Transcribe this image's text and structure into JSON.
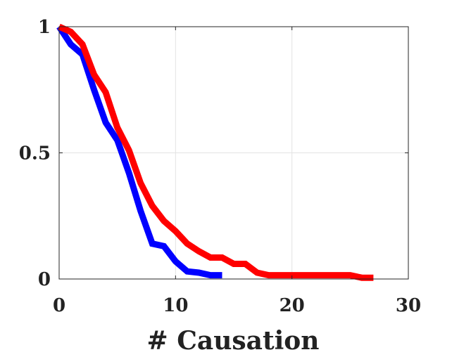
{
  "chart_data": {
    "type": "line",
    "title": "",
    "xlabel": "# Causation",
    "ylabel": "",
    "xlim": [
      0,
      30
    ],
    "ylim": [
      0,
      1
    ],
    "x_ticks": [
      0,
      10,
      20,
      30
    ],
    "x_tick_labels": [
      "0",
      "10",
      "20",
      "30"
    ],
    "y_ticks": [
      0,
      0.5,
      1
    ],
    "y_tick_labels": [
      "0",
      "0.5",
      "1"
    ],
    "grid": true,
    "legend": false,
    "series": [
      {
        "color": "#0000ff",
        "x": [
          0,
          1,
          2,
          3,
          4,
          5,
          6,
          7,
          8,
          9,
          10,
          11,
          12,
          13,
          14
        ],
        "y": [
          1.0,
          0.93,
          0.89,
          0.75,
          0.62,
          0.55,
          0.42,
          0.27,
          0.14,
          0.13,
          0.07,
          0.03,
          0.025,
          0.015,
          0.015
        ]
      },
      {
        "color": "#ff0000",
        "x": [
          0,
          1,
          2,
          3,
          4,
          5,
          6,
          7,
          8,
          9,
          10,
          11,
          12,
          13,
          14,
          15,
          16,
          17,
          18,
          19,
          20,
          21,
          22,
          23,
          24,
          25,
          26,
          27
        ],
        "y": [
          1.0,
          0.98,
          0.93,
          0.81,
          0.74,
          0.6,
          0.51,
          0.38,
          0.29,
          0.23,
          0.19,
          0.14,
          0.11,
          0.085,
          0.085,
          0.06,
          0.06,
          0.025,
          0.015,
          0.015,
          0.015,
          0.015,
          0.015,
          0.015,
          0.015,
          0.015,
          0.005,
          0.005
        ]
      }
    ]
  }
}
